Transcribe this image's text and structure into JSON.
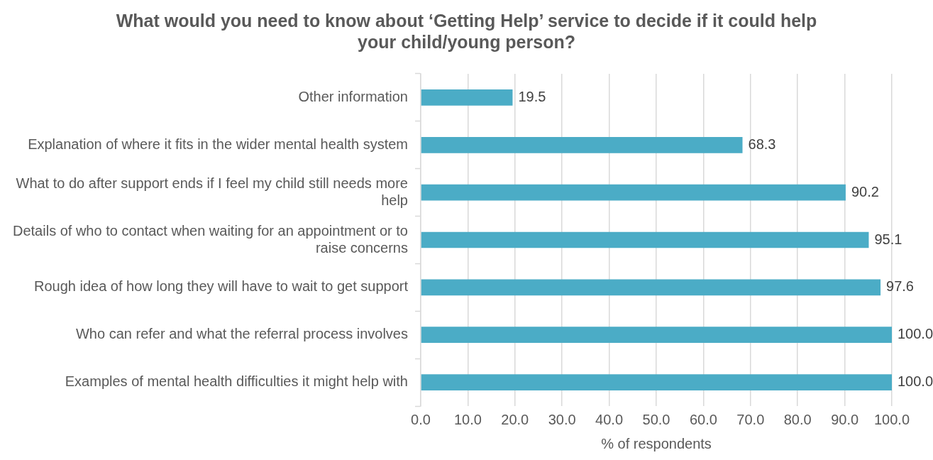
{
  "chart_data": {
    "type": "bar",
    "orientation": "horizontal",
    "title": "What would you need to know about ‘Getting Help’ service to decide if it could help your child/young person?",
    "xlabel": "% of respondents",
    "categories": [
      "Other information",
      "Explanation of where it fits in the wider mental health system",
      "What to do after support ends if I feel my child still needs more help",
      "Details of who to contact when waiting for an appointment or to raise concerns",
      "Rough idea of how long they will have to wait to get support",
      "Who can refer and what the referral process involves",
      "Examples of mental health difficulties it might help with"
    ],
    "values": [
      19.5,
      68.3,
      90.2,
      95.1,
      97.6,
      100,
      100
    ],
    "value_labels": [
      "19.5",
      "68.3",
      "90.2",
      "95.1",
      "97.6",
      "100.0",
      "100.0"
    ],
    "color": "#4bacc6",
    "xlim": [
      0,
      100
    ],
    "xticks": [
      {
        "value": 0,
        "label": "0.0"
      },
      {
        "value": 10,
        "label": "10.0"
      },
      {
        "value": 20,
        "label": "20.0"
      },
      {
        "value": 30,
        "label": "30.0"
      },
      {
        "value": 40,
        "label": "40.0"
      },
      {
        "value": 50,
        "label": "50.0"
      },
      {
        "value": 60,
        "label": "60.0"
      },
      {
        "value": 70,
        "label": "70.0"
      },
      {
        "value": 80,
        "label": "80.0"
      },
      {
        "value": 90,
        "label": "90.0"
      },
      {
        "value": 100,
        "label": "100.0"
      }
    ],
    "grid": "x",
    "legend": false
  }
}
